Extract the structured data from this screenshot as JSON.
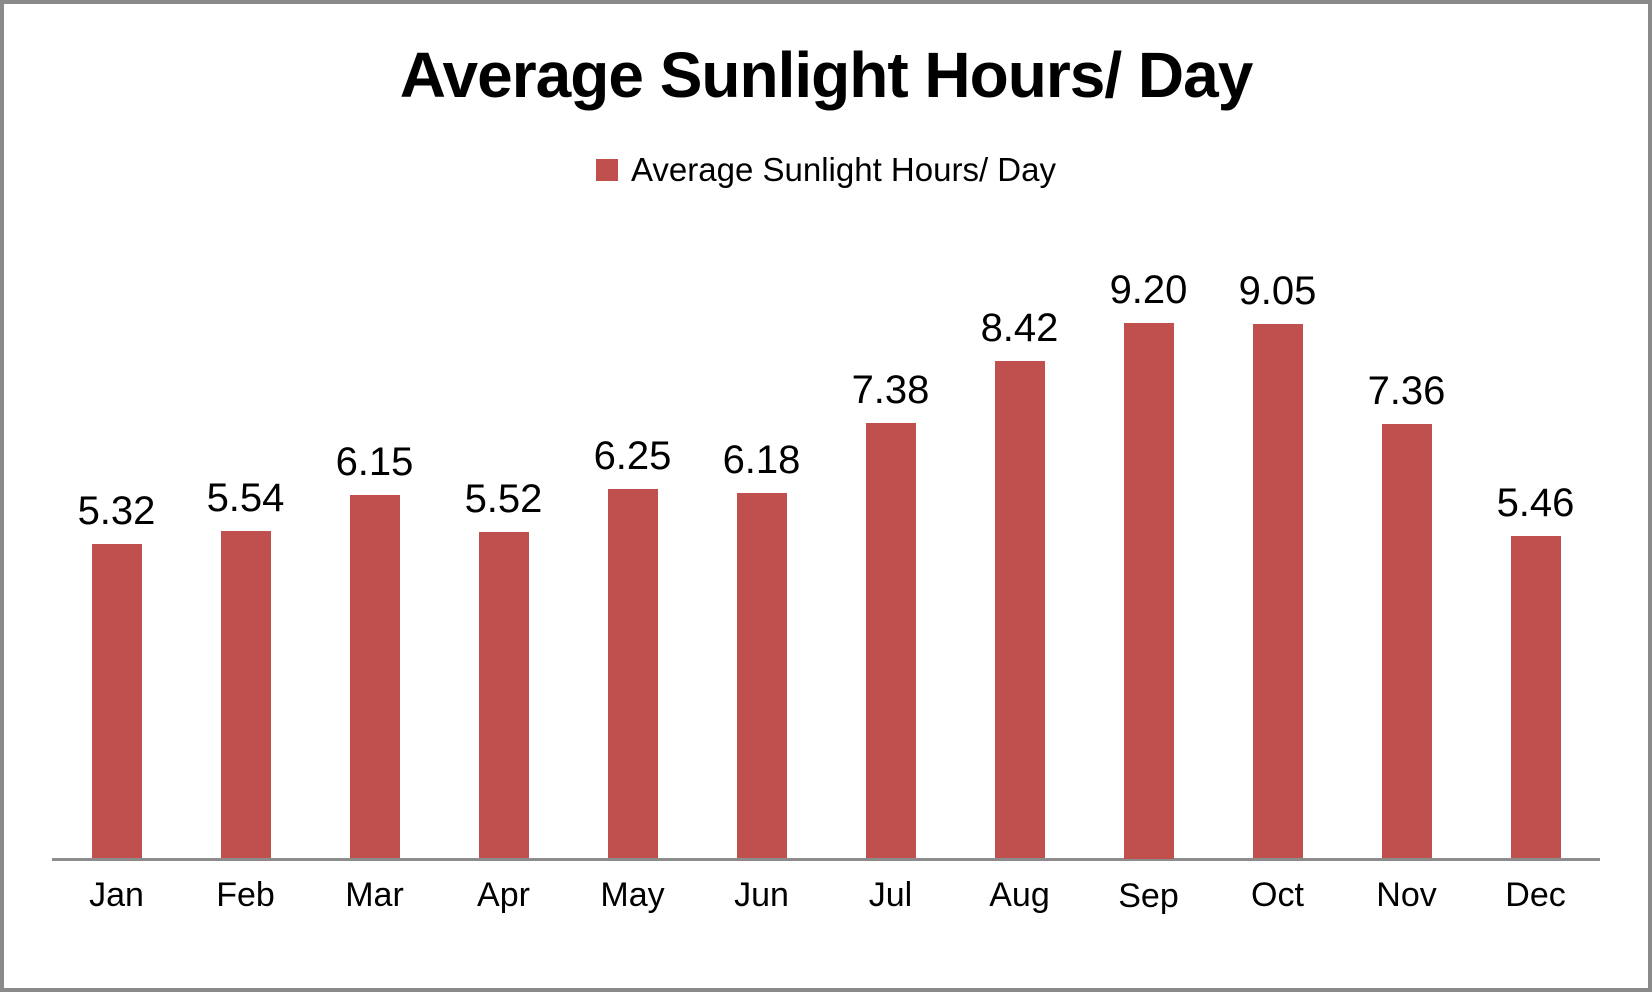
{
  "frame": {
    "background": "#ffffff",
    "border_color": "#8a8a8a"
  },
  "title": "Average Sunlight Hours/ Day",
  "legend": {
    "label": "Average Sunlight Hours/ Day",
    "swatch_color": "#C0504D"
  },
  "chart_data": {
    "type": "bar",
    "title": "Average Sunlight Hours/ Day",
    "categories": [
      "Jan",
      "Feb",
      "Mar",
      "Apr",
      "May",
      "Jun",
      "Jul",
      "Aug",
      "Sep",
      "Oct",
      "Nov",
      "Dec"
    ],
    "values": [
      5.32,
      5.54,
      6.15,
      5.52,
      6.25,
      6.18,
      7.38,
      8.42,
      9.2,
      9.05,
      7.36,
      5.46
    ],
    "value_labels": [
      "5.32",
      "5.54",
      "6.15",
      "5.52",
      "6.25",
      "6.18",
      "7.38",
      "8.42",
      "9.20",
      "9.05",
      "7.36",
      "5.46"
    ],
    "series": [
      {
        "name": "Average Sunlight Hours/ Day",
        "values": [
          5.32,
          5.54,
          6.15,
          5.52,
          6.25,
          6.18,
          7.38,
          8.42,
          9.2,
          9.05,
          7.36,
          5.46
        ]
      }
    ],
    "xlabel": "",
    "ylabel": "",
    "ylim": [
      0,
      10
    ],
    "grid": false,
    "legend_position": "top",
    "bar_color": "#C0504D",
    "axis_line_color": "#8C8C8C"
  }
}
